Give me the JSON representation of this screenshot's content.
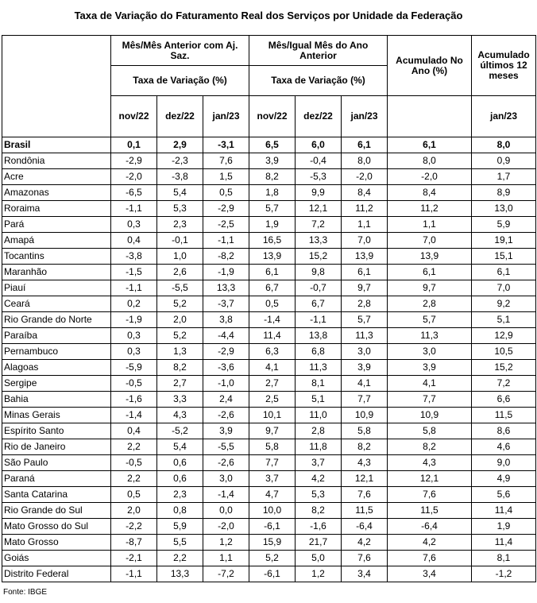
{
  "title": "Taxa de Variação do Faturamento Real dos Serviços por Unidade da Federação",
  "header": {
    "group1": "Mês/Mês Anterior com Aj. Saz.",
    "group2": "Mês/Igual Mês do Ano Anterior",
    "acum_ano": "Acumulado No Ano (%)",
    "acum_12": "Acumulado últimos 12 meses",
    "taxa1": "Taxa de Variação (%)",
    "taxa2": "Taxa de Variação (%)",
    "months": [
      "nov/22",
      "dez/22",
      "jan/23",
      "nov/22",
      "dez/22",
      "jan/23"
    ],
    "acum_12_month": "jan/23"
  },
  "rows": [
    {
      "uf": "Brasil",
      "v": [
        "0,1",
        "2,9",
        "-3,1",
        "6,5",
        "6,0",
        "6,1",
        "6,1",
        "8,0"
      ]
    },
    {
      "uf": "Rondônia",
      "v": [
        "-2,9",
        "-2,3",
        "7,6",
        "3,9",
        "-0,4",
        "8,0",
        "8,0",
        "0,9"
      ]
    },
    {
      "uf": "Acre",
      "v": [
        "-2,0",
        "-3,8",
        "1,5",
        "8,2",
        "-5,3",
        "-2,0",
        "-2,0",
        "1,7"
      ]
    },
    {
      "uf": "Amazonas",
      "v": [
        "-6,5",
        "5,4",
        "0,5",
        "1,8",
        "9,9",
        "8,4",
        "8,4",
        "8,9"
      ]
    },
    {
      "uf": "Roraima",
      "v": [
        "-1,1",
        "5,3",
        "-2,9",
        "5,7",
        "12,1",
        "11,2",
        "11,2",
        "13,0"
      ]
    },
    {
      "uf": "Pará",
      "v": [
        "0,3",
        "2,3",
        "-2,5",
        "1,9",
        "7,2",
        "1,1",
        "1,1",
        "5,9"
      ]
    },
    {
      "uf": "Amapá",
      "v": [
        "0,4",
        "-0,1",
        "-1,1",
        "16,5",
        "13,3",
        "7,0",
        "7,0",
        "19,1"
      ]
    },
    {
      "uf": "Tocantins",
      "v": [
        "-3,8",
        "1,0",
        "-8,2",
        "13,9",
        "15,2",
        "13,9",
        "13,9",
        "15,1"
      ]
    },
    {
      "uf": "Maranhão",
      "v": [
        "-1,5",
        "2,6",
        "-1,9",
        "6,1",
        "9,8",
        "6,1",
        "6,1",
        "6,1"
      ]
    },
    {
      "uf": "Piauí",
      "v": [
        "-1,1",
        "-5,5",
        "13,3",
        "6,7",
        "-0,7",
        "9,7",
        "9,7",
        "7,0"
      ]
    },
    {
      "uf": "Ceará",
      "v": [
        "0,2",
        "5,2",
        "-3,7",
        "0,5",
        "6,7",
        "2,8",
        "2,8",
        "9,2"
      ]
    },
    {
      "uf": "Rio Grande do Norte",
      "v": [
        "-1,9",
        "2,0",
        "3,8",
        "-1,4",
        "-1,1",
        "5,7",
        "5,7",
        "5,1"
      ]
    },
    {
      "uf": "Paraíba",
      "v": [
        "0,3",
        "5,2",
        "-4,4",
        "11,4",
        "13,8",
        "11,3",
        "11,3",
        "12,9"
      ]
    },
    {
      "uf": "Pernambuco",
      "v": [
        "0,3",
        "1,3",
        "-2,9",
        "6,3",
        "6,8",
        "3,0",
        "3,0",
        "10,5"
      ]
    },
    {
      "uf": "Alagoas",
      "v": [
        "-5,9",
        "8,2",
        "-3,6",
        "4,1",
        "11,3",
        "3,9",
        "3,9",
        "15,2"
      ]
    },
    {
      "uf": "Sergipe",
      "v": [
        "-0,5",
        "2,7",
        "-1,0",
        "2,7",
        "8,1",
        "4,1",
        "4,1",
        "7,2"
      ]
    },
    {
      "uf": "Bahia",
      "v": [
        "-1,6",
        "3,3",
        "2,4",
        "2,5",
        "5,1",
        "7,7",
        "7,7",
        "6,6"
      ]
    },
    {
      "uf": "Minas Gerais",
      "v": [
        "-1,4",
        "4,3",
        "-2,6",
        "10,1",
        "11,0",
        "10,9",
        "10,9",
        "11,5"
      ]
    },
    {
      "uf": "Espírito Santo",
      "v": [
        "0,4",
        "-5,2",
        "3,9",
        "9,7",
        "2,8",
        "5,8",
        "5,8",
        "8,6"
      ]
    },
    {
      "uf": "Rio de Janeiro",
      "v": [
        "2,2",
        "5,4",
        "-5,5",
        "5,8",
        "11,8",
        "8,2",
        "8,2",
        "4,6"
      ]
    },
    {
      "uf": "São Paulo",
      "v": [
        "-0,5",
        "0,6",
        "-2,6",
        "7,7",
        "3,7",
        "4,3",
        "4,3",
        "9,0"
      ]
    },
    {
      "uf": "Paraná",
      "v": [
        "2,2",
        "0,6",
        "3,0",
        "3,7",
        "4,2",
        "12,1",
        "12,1",
        "4,9"
      ]
    },
    {
      "uf": "Santa Catarina",
      "v": [
        "0,5",
        "2,3",
        "-1,4",
        "4,7",
        "5,3",
        "7,6",
        "7,6",
        "5,6"
      ]
    },
    {
      "uf": "Rio Grande do Sul",
      "v": [
        "2,0",
        "0,8",
        "0,0",
        "10,0",
        "8,2",
        "11,5",
        "11,5",
        "11,4"
      ]
    },
    {
      "uf": "Mato Grosso do Sul",
      "v": [
        "-2,2",
        "5,9",
        "-2,0",
        "-6,1",
        "-1,6",
        "-6,4",
        "-6,4",
        "1,9"
      ]
    },
    {
      "uf": "Mato Grosso",
      "v": [
        "-8,7",
        "5,5",
        "1,2",
        "15,9",
        "21,7",
        "4,2",
        "4,2",
        "11,4"
      ]
    },
    {
      "uf": "Goiás",
      "v": [
        "-2,1",
        "2,2",
        "1,1",
        "5,2",
        "5,0",
        "7,6",
        "7,6",
        "8,1"
      ]
    },
    {
      "uf": "Distrito Federal",
      "v": [
        "-1,1",
        "13,3",
        "-7,2",
        "-6,1",
        "1,2",
        "3,4",
        "3,4",
        "-1,2"
      ]
    }
  ],
  "source": "Fonte: IBGE"
}
